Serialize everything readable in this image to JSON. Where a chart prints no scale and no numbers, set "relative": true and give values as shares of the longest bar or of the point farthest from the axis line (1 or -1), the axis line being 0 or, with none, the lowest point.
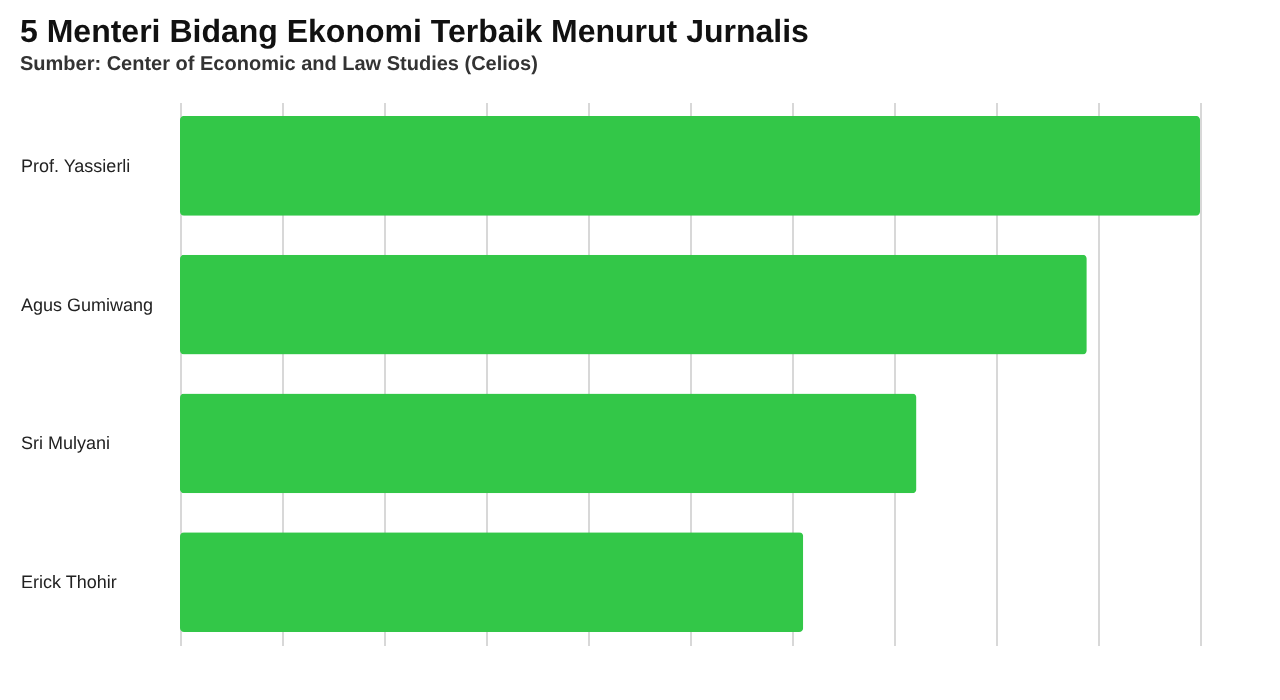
{
  "chart_data": {
    "type": "bar",
    "orientation": "horizontal",
    "relative": true,
    "title": "5 Menteri Bidang Ekonomi Terbaik Menurut Jurnalis",
    "subtitle": "Sumber: Center of Economic and Law Studies (Celios)",
    "categories": [
      "Prof. Yassierli",
      "Agus Gumiwang",
      "Sri Mulyani",
      "Erick Thohir"
    ],
    "values": [
      1,
      0.889,
      0.722,
      0.611
    ],
    "color": "#33c748",
    "grid": true
  }
}
